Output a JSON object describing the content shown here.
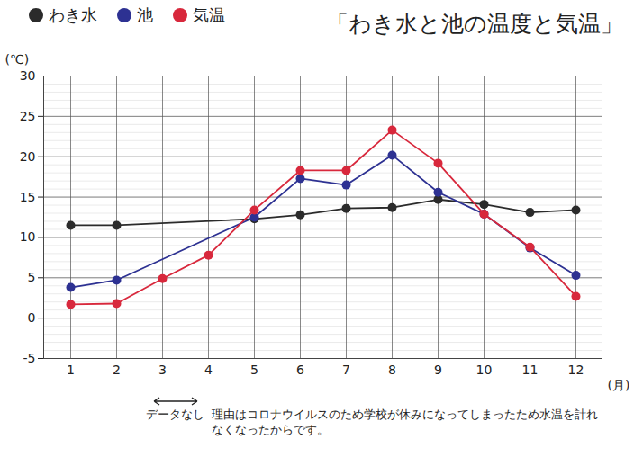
{
  "chart_data": {
    "type": "line",
    "title": "「わき水と池の温度と気温」",
    "x_label": "(月)",
    "y_label": "(℃)",
    "categories": [
      "1",
      "2",
      "3",
      "4",
      "5",
      "6",
      "7",
      "8",
      "9",
      "10",
      "11",
      "12"
    ],
    "series": [
      {
        "name": "わき水",
        "color": "#2b2b2b",
        "values": [
          11.5,
          11.5,
          null,
          null,
          12.3,
          12.8,
          13.6,
          13.7,
          14.7,
          14.1,
          13.1,
          13.4
        ]
      },
      {
        "name": "池",
        "color": "#2d3192",
        "values": [
          3.8,
          4.7,
          null,
          null,
          12.5,
          17.3,
          16.5,
          20.2,
          15.6,
          12.9,
          8.7,
          5.3
        ]
      },
      {
        "name": "気温",
        "color": "#d8283c",
        "values": [
          1.7,
          1.8,
          4.9,
          7.8,
          13.4,
          18.3,
          18.3,
          23.3,
          19.2,
          12.9,
          8.8,
          2.7
        ]
      }
    ],
    "ylim": [
      -5,
      30
    ],
    "yticks": [
      -5,
      0,
      5,
      10,
      15,
      20,
      25,
      30
    ],
    "grid": true,
    "legend": "top-left",
    "marker": "circle",
    "annotations": [
      "データなし",
      "理由はコロナウイルスのため学校が休みになってしまったため水温を計れなくなったからです。"
    ]
  }
}
